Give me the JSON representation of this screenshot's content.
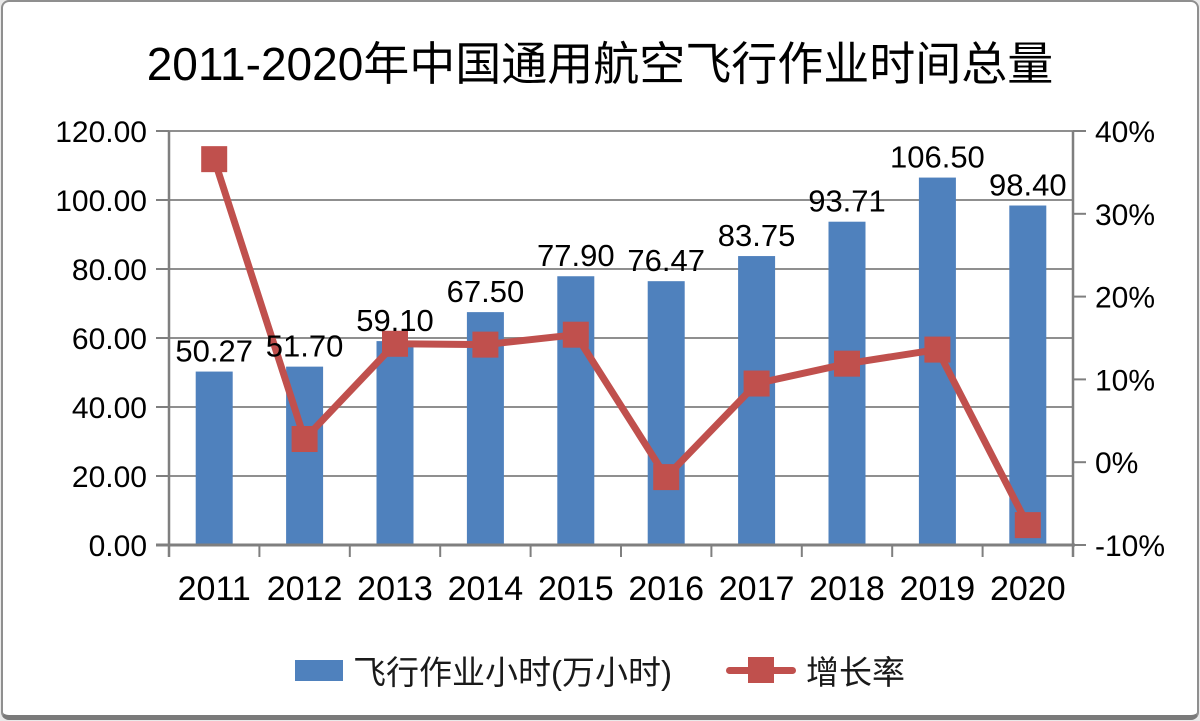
{
  "chart_data": {
    "type": "combo-bar-line",
    "title": "2011-2020年中国通用航空飞行作业时间总量",
    "categories": [
      "2011",
      "2012",
      "2013",
      "2014",
      "2015",
      "2016",
      "2017",
      "2018",
      "2019",
      "2020"
    ],
    "series": [
      {
        "name": "飞行作业小时(万小时)",
        "type": "bar",
        "axis": "left",
        "color": "#4F81BD",
        "values": [
          50.27,
          51.7,
          59.1,
          67.5,
          77.9,
          76.47,
          83.75,
          93.71,
          106.5,
          98.4
        ],
        "data_labels": [
          "50.27",
          "51.70",
          "59.10",
          "67.50",
          "77.90",
          "76.47",
          "83.75",
          "93.71",
          "106.50",
          "98.40"
        ]
      },
      {
        "name": "增长率",
        "type": "line",
        "axis": "right",
        "color": "#C0504D",
        "values_percent": [
          36.6,
          2.8,
          14.3,
          14.2,
          15.4,
          -1.8,
          9.5,
          11.9,
          13.6,
          -7.6
        ]
      }
    ],
    "left_axis": {
      "min": 0,
      "max": 120,
      "tick_labels": [
        "0.00",
        "20.00",
        "40.00",
        "60.00",
        "80.00",
        "100.00",
        "120.00"
      ]
    },
    "right_axis": {
      "min": -10,
      "max": 40,
      "tick_labels": [
        "-10%",
        "0%",
        "10%",
        "20%",
        "30%",
        "40%"
      ]
    },
    "grid": "horizontal",
    "legend_position": "bottom",
    "colors": {
      "bar": "#4F81BD",
      "line": "#C0504D",
      "gridline": "#8f8f8f",
      "axis": "#7f7f7f",
      "text": "#000000"
    }
  }
}
